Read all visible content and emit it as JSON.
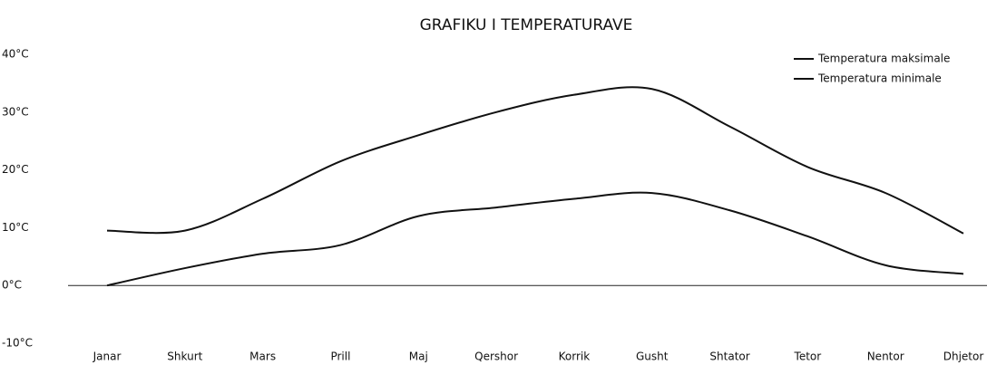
{
  "chart_data": {
    "type": "line",
    "title": "GRAFIKU I TEMPERATURAVE",
    "categories": [
      "Janar",
      "Shkurt",
      "Mars",
      "Prill",
      "Maj",
      "Qershor",
      "Korrik",
      "Gusht",
      "Shtator",
      "Tetor",
      "Nentor",
      "Dhjetor"
    ],
    "series": [
      {
        "name": "Temperatura maksimale",
        "color": "#111111",
        "values": [
          9.5,
          9.5,
          15,
          21.5,
          26,
          30,
          33,
          34,
          27.5,
          20.5,
          16,
          9
        ]
      },
      {
        "name": "Temperatura minimale",
        "color": "#111111",
        "values": [
          0,
          3,
          5.5,
          7,
          12,
          13.5,
          15,
          16,
          13,
          8.5,
          3.5,
          2
        ]
      }
    ],
    "ylim": [
      -10,
      40
    ],
    "yticks": [
      {
        "value": 40,
        "label": "40°C"
      },
      {
        "value": 30,
        "label": "30°C"
      },
      {
        "value": 20,
        "label": "20°C"
      },
      {
        "value": 10,
        "label": "10°C"
      },
      {
        "value": 0,
        "label": "0°C"
      },
      {
        "value": -10,
        "label": "-10°C"
      }
    ],
    "grid": false,
    "legend": "top-right"
  }
}
